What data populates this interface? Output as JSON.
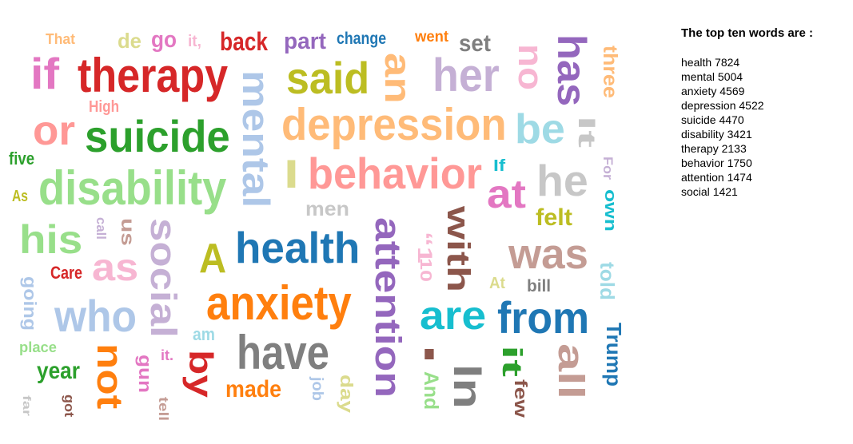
{
  "top_words": {
    "heading": "The top ten words are :",
    "items": [
      {
        "word": "health",
        "count": "7824"
      },
      {
        "word": "mental",
        "count": "5004"
      },
      {
        "word": "anxiety",
        "count": "4569"
      },
      {
        "word": "depression",
        "count": "4522"
      },
      {
        "word": "suicide",
        "count": "4470"
      },
      {
        "word": "disability",
        "count": "3421"
      },
      {
        "word": "therapy",
        "count": "2133"
      },
      {
        "word": "behavior",
        "count": "1750"
      },
      {
        "word": "attention",
        "count": "1474"
      },
      {
        "word": "social",
        "count": "1421"
      }
    ]
  },
  "word_cloud": {
    "words": [
      {
        "text": "That",
        "color": "#ffbb78",
        "vertical": false
      },
      {
        "text": "de",
        "color": "#dbdb8d",
        "vertical": false
      },
      {
        "text": "go",
        "color": "#e377c2",
        "vertical": false
      },
      {
        "text": "it,",
        "color": "#f7b6d2",
        "vertical": false
      },
      {
        "text": "back",
        "color": "#d62728",
        "vertical": false
      },
      {
        "text": "part",
        "color": "#9467bd",
        "vertical": false
      },
      {
        "text": "change",
        "color": "#1f77b4",
        "vertical": false
      },
      {
        "text": "went",
        "color": "#ff7f0e",
        "vertical": false
      },
      {
        "text": "set",
        "color": "#7f7f7f",
        "vertical": false
      },
      {
        "text": "if",
        "color": "#e377c2",
        "vertical": false
      },
      {
        "text": "therapy",
        "color": "#d62728",
        "vertical": false
      },
      {
        "text": "mental",
        "color": "#aec7e8",
        "vertical": true
      },
      {
        "text": "said",
        "color": "#bcbd22",
        "vertical": false
      },
      {
        "text": "an",
        "color": "#ffbb78",
        "vertical": true
      },
      {
        "text": "her",
        "color": "#c5b0d5",
        "vertical": false
      },
      {
        "text": "no",
        "color": "#f7b6d2",
        "vertical": true
      },
      {
        "text": "has",
        "color": "#9467bd",
        "vertical": true
      },
      {
        "text": "three",
        "color": "#ffbb78",
        "vertical": true
      },
      {
        "text": "High",
        "color": "#ff9896",
        "vertical": false
      },
      {
        "text": "or",
        "color": "#ff9896",
        "vertical": false
      },
      {
        "text": "suicide",
        "color": "#2ca02c",
        "vertical": false
      },
      {
        "text": "depression",
        "color": "#ffbb78",
        "vertical": false
      },
      {
        "text": "be",
        "color": "#9edae5",
        "vertical": false
      },
      {
        "text": "It",
        "color": "#c7c7c7",
        "vertical": true
      },
      {
        "text": "five",
        "color": "#2ca02c",
        "vertical": false
      },
      {
        "text": "disability",
        "color": "#98df8a",
        "vertical": false
      },
      {
        "text": "I",
        "color": "#dbdb8d",
        "vertical": false
      },
      {
        "text": "behavior",
        "color": "#ff9896",
        "vertical": false
      },
      {
        "text": "If",
        "color": "#17becf",
        "vertical": false
      },
      {
        "text": "at",
        "color": "#e377c2",
        "vertical": false
      },
      {
        "text": "he",
        "color": "#c7c7c7",
        "vertical": false
      },
      {
        "text": "For",
        "color": "#c5b0d5",
        "vertical": true
      },
      {
        "text": "As",
        "color": "#bcbd22",
        "vertical": false
      },
      {
        "text": "own",
        "color": "#17becf",
        "vertical": true
      },
      {
        "text": "men",
        "color": "#c7c7c7",
        "vertical": false
      },
      {
        "text": "felt",
        "color": "#bcbd22",
        "vertical": false
      },
      {
        "text": "his",
        "color": "#98df8a",
        "vertical": false
      },
      {
        "text": "call",
        "color": "#c5b0d5",
        "vertical": true
      },
      {
        "text": "us",
        "color": "#c49c94",
        "vertical": true
      },
      {
        "text": "social",
        "color": "#c5b0d5",
        "vertical": true
      },
      {
        "text": "A",
        "color": "#bcbd22",
        "vertical": false
      },
      {
        "text": "health",
        "color": "#1f77b4",
        "vertical": false
      },
      {
        "text": "attention",
        "color": "#9467bd",
        "vertical": true
      },
      {
        "text": "with",
        "color": "#8c564b",
        "vertical": true
      },
      {
        "text": "“1",
        "color": "#f7b6d2",
        "vertical": true
      },
      {
        "text": "10",
        "color": "#f7b6d2",
        "vertical": true
      },
      {
        "text": "was",
        "color": "#c49c94",
        "vertical": false
      },
      {
        "text": "as",
        "color": "#f7b6d2",
        "vertical": false
      },
      {
        "text": "told",
        "color": "#9edae5",
        "vertical": true
      },
      {
        "text": "Care",
        "color": "#d62728",
        "vertical": false
      },
      {
        "text": "At",
        "color": "#dbdb8d",
        "vertical": false
      },
      {
        "text": "bill",
        "color": "#7f7f7f",
        "vertical": false
      },
      {
        "text": "going",
        "color": "#aec7e8",
        "vertical": true
      },
      {
        "text": "who",
        "color": "#aec7e8",
        "vertical": false
      },
      {
        "text": "anxiety",
        "color": "#ff7f0e",
        "vertical": false
      },
      {
        "text": "are",
        "color": "#17becf",
        "vertical": false
      },
      {
        "text": "from",
        "color": "#1f77b4",
        "vertical": false
      },
      {
        "text": "am",
        "color": "#9edae5",
        "vertical": false
      },
      {
        "text": "Trump",
        "color": "#1f77b4",
        "vertical": true
      },
      {
        "text": "have",
        "color": "#7f7f7f",
        "vertical": false
      },
      {
        "text": "place",
        "color": "#98df8a",
        "vertical": false
      },
      {
        "text": "not",
        "color": "#ff7f0e",
        "vertical": true
      },
      {
        "text": "it.",
        "color": "#e377c2",
        "vertical": false
      },
      {
        "text": "gun",
        "color": "#e377c2",
        "vertical": true
      },
      {
        "text": "by",
        "color": "#d62728",
        "vertical": true
      },
      {
        "text": "I",
        "color": "#8c564b",
        "vertical": false
      },
      {
        "text": "it",
        "color": "#2ca02c",
        "vertical": true
      },
      {
        "text": "all",
        "color": "#c49c94",
        "vertical": true
      },
      {
        "text": "In",
        "color": "#7f7f7f",
        "vertical": true
      },
      {
        "text": "year",
        "color": "#2ca02c",
        "vertical": false
      },
      {
        "text": "made",
        "color": "#ff7f0e",
        "vertical": false
      },
      {
        "text": "job",
        "color": "#aec7e8",
        "vertical": true
      },
      {
        "text": "day",
        "color": "#dbdb8d",
        "vertical": true
      },
      {
        "text": "And",
        "color": "#98df8a",
        "vertical": true
      },
      {
        "text": "few",
        "color": "#8c564b",
        "vertical": true
      },
      {
        "text": "far",
        "color": "#c7c7c7",
        "vertical": true
      },
      {
        "text": "got",
        "color": "#8c564b",
        "vertical": true
      },
      {
        "text": "tell",
        "color": "#c49c94",
        "vertical": true
      }
    ]
  }
}
